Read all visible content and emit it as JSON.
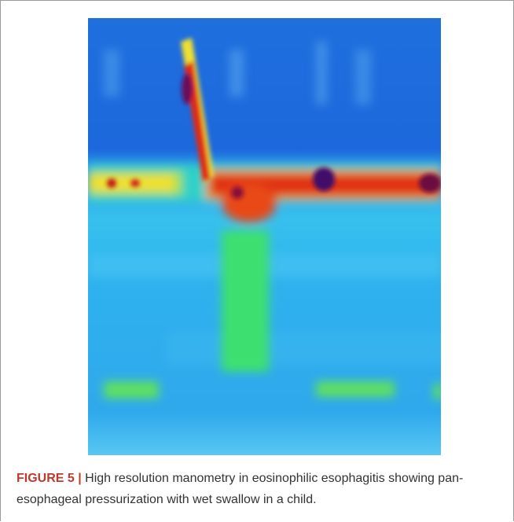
{
  "figure": {
    "label": "FIGURE 5 |",
    "caption": "High resolution manometry in eosinophilic esophagitis showing pan-esophageal pressurization with wet swallow in a child."
  }
}
